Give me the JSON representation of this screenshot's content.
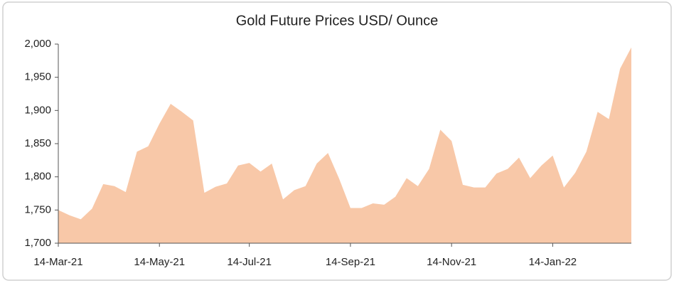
{
  "chart_data": {
    "type": "area",
    "title": "Gold Future Prices USD/ Ounce",
    "color": "#f8c8a8",
    "categories": [
      "14-Mar-21",
      null,
      null,
      null,
      null,
      null,
      null,
      null,
      null,
      "14-May-21",
      null,
      null,
      null,
      null,
      null,
      null,
      null,
      "14-Jul-21",
      null,
      null,
      null,
      null,
      null,
      null,
      null,
      null,
      "14-Sep-21",
      null,
      null,
      null,
      null,
      null,
      null,
      null,
      null,
      "14-Nov-21",
      null,
      null,
      null,
      null,
      null,
      null,
      null,
      null,
      "14-Jan-22",
      null,
      null,
      null,
      null,
      null,
      null,
      null
    ],
    "values": [
      1750,
      1742,
      1736,
      1752,
      1789,
      1786,
      1777,
      1838,
      1846,
      1880,
      1910,
      1898,
      1885,
      1776,
      1785,
      1790,
      1817,
      1821,
      1808,
      1820,
      1766,
      1780,
      1786,
      1820,
      1836,
      1797,
      1753,
      1753,
      1760,
      1758,
      1770,
      1798,
      1786,
      1812,
      1871,
      1854,
      1788,
      1784,
      1784,
      1805,
      1812,
      1829,
      1798,
      1817,
      1832,
      1784,
      1806,
      1838,
      1898,
      1887,
      1963,
      1995
    ],
    "ylim": [
      1700,
      2000
    ],
    "yticks": [
      {
        "value": 1700,
        "label": "1,700"
      },
      {
        "value": 1750,
        "label": "1,750"
      },
      {
        "value": 1800,
        "label": "1,800"
      },
      {
        "value": 1850,
        "label": "1,850"
      },
      {
        "value": 1900,
        "label": "1,900"
      },
      {
        "value": 1950,
        "label": "1,950"
      },
      {
        "value": 2000,
        "label": "2,000"
      }
    ]
  }
}
